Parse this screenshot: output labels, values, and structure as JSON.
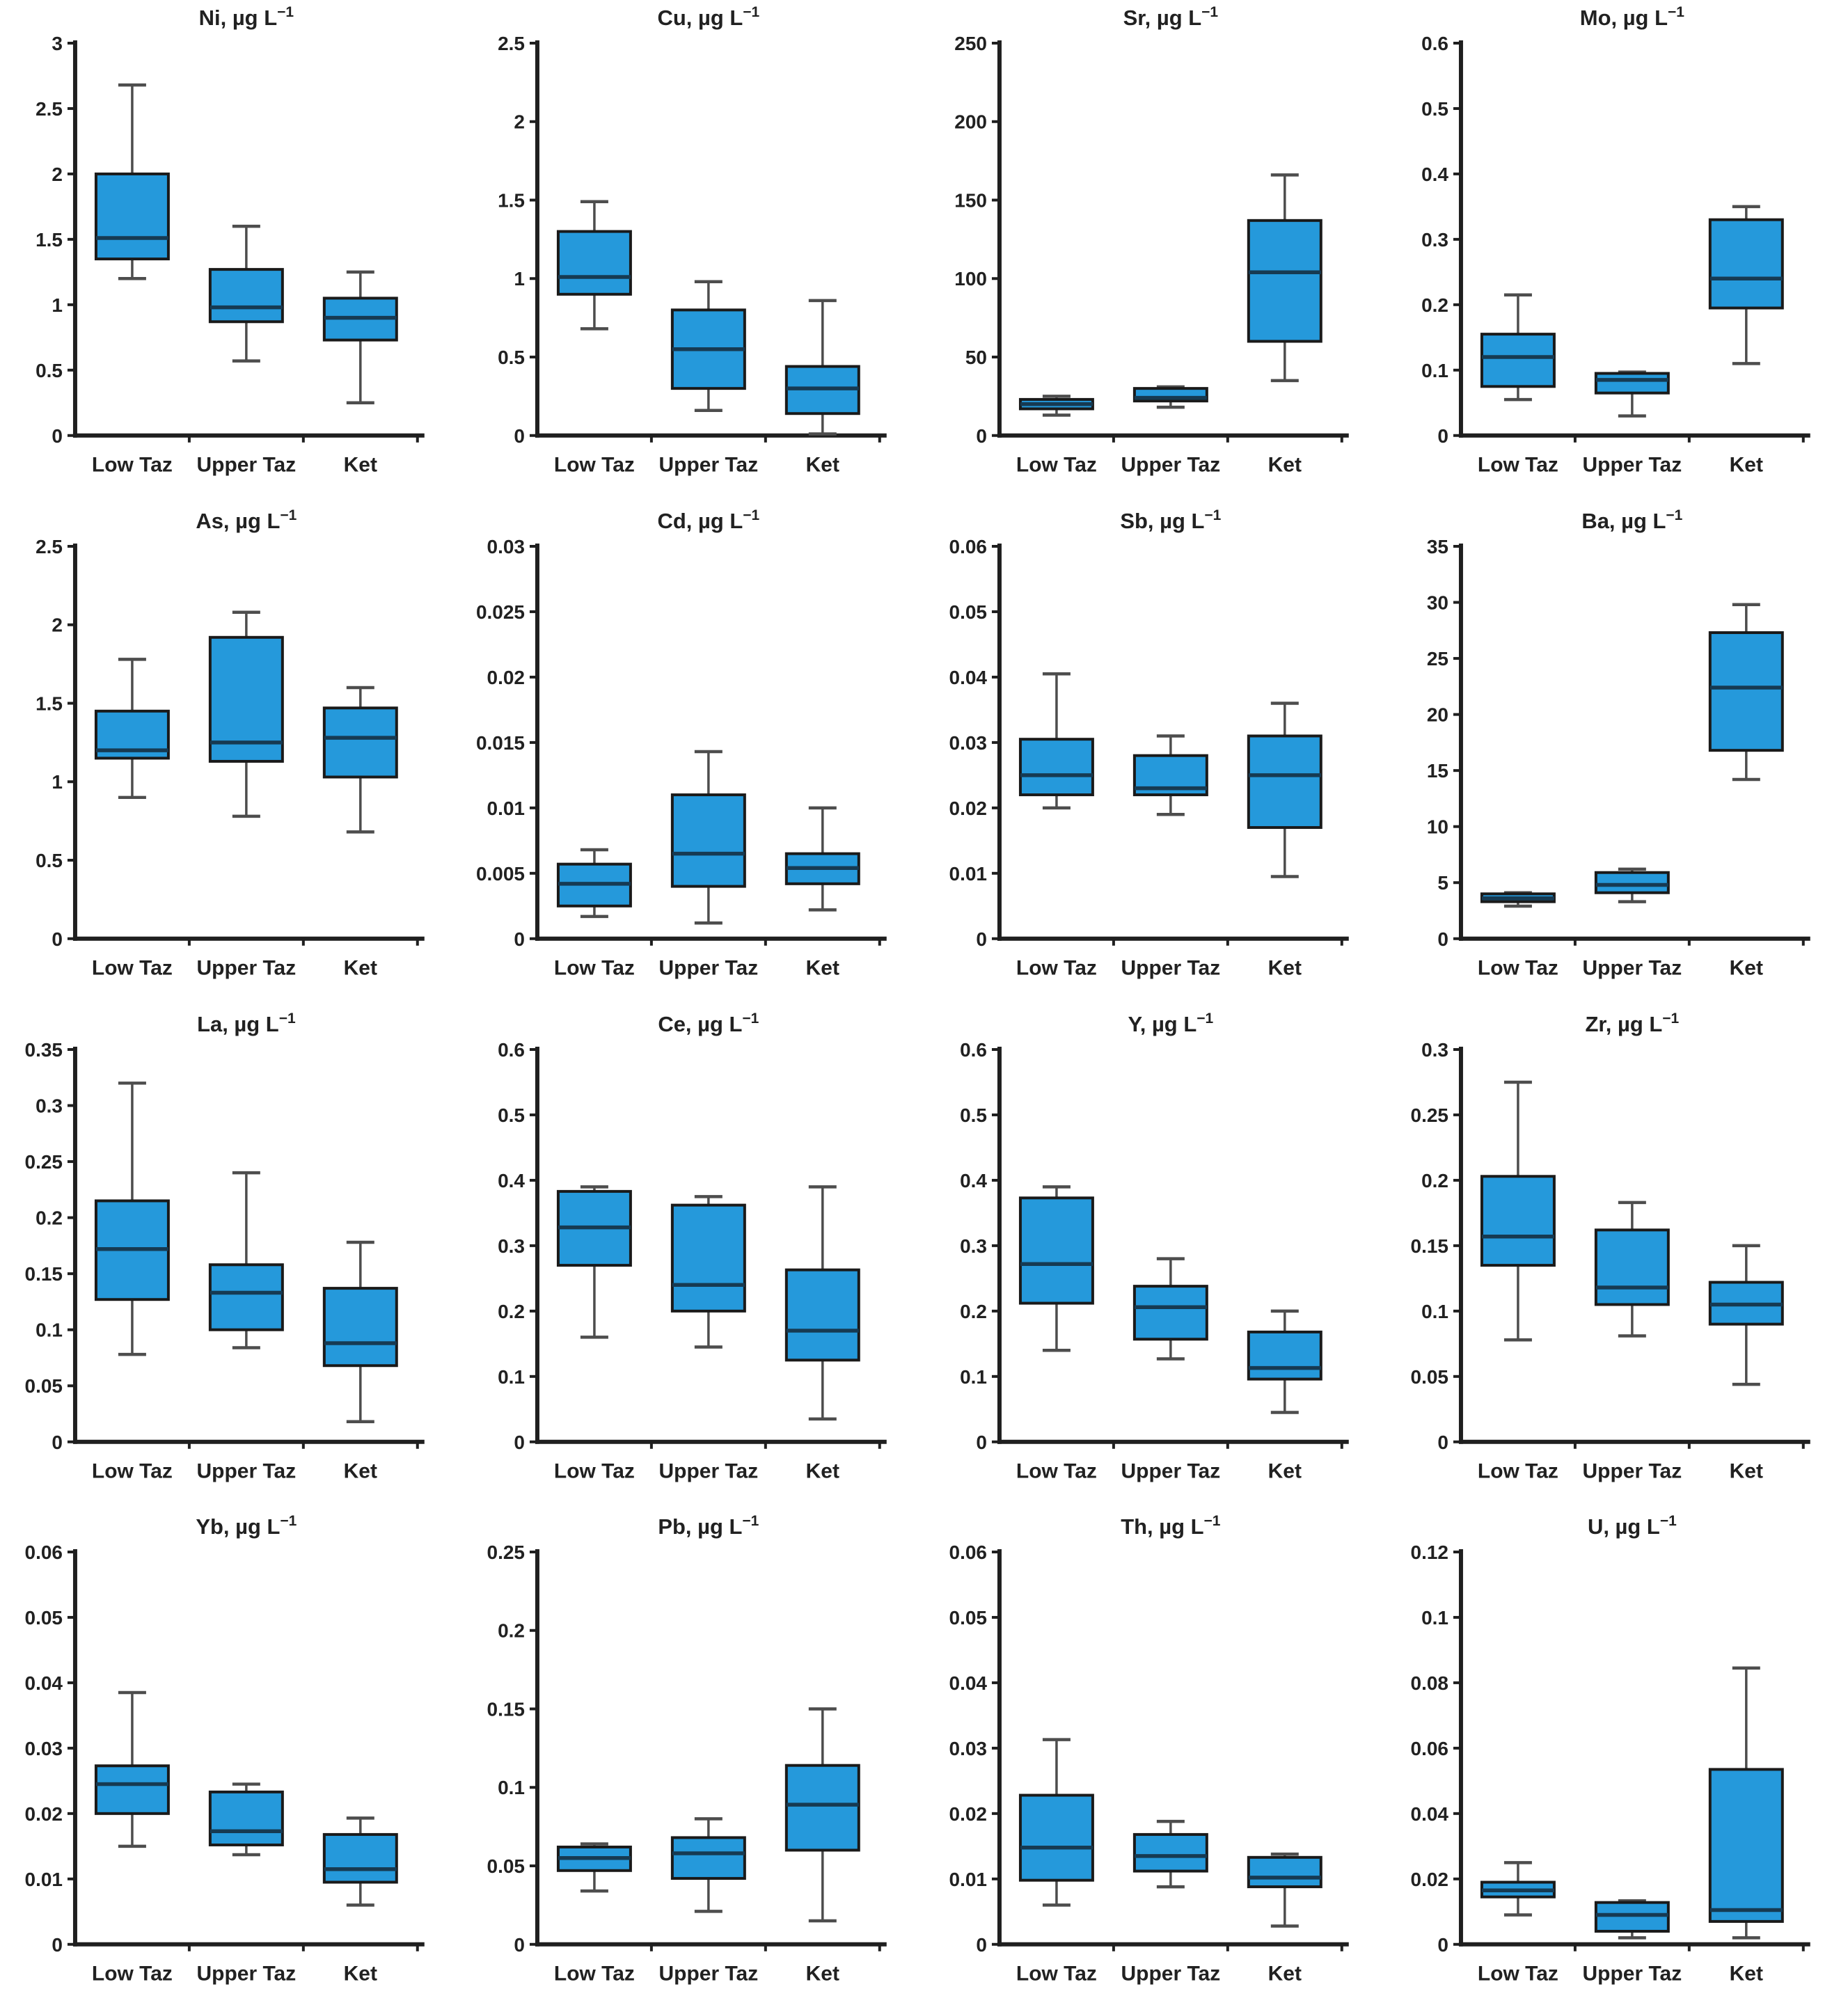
{
  "figure": {
    "description": "4x4 grid of box-and-whisker plots of trace element concentrations",
    "unit": "µg L",
    "unit_exponent": "−1",
    "categories": [
      "Low Taz",
      "Upper Taz",
      "Ket"
    ]
  },
  "style": {
    "background": "#ffffff",
    "box_fill": "#2599db",
    "box_border": "#1a1a1a",
    "median_color": "#163a52",
    "whisker_color": "#4d4d4d",
    "axis_color": "#1f1f1f",
    "text_color": "#212121"
  },
  "chart_data": [
    {
      "type": "box",
      "element": "Ni",
      "title": "Ni, µg L⁻¹",
      "categories": [
        "Low Taz",
        "Upper Taz",
        "Ket"
      ],
      "ylim": [
        0,
        3
      ],
      "ytick_step": 0.5,
      "series": [
        {
          "name": "Low Taz",
          "whisker_low": 1.2,
          "q1": 1.35,
          "median": 1.51,
          "q3": 2.0,
          "whisker_high": 2.68
        },
        {
          "name": "Upper Taz",
          "whisker_low": 0.57,
          "q1": 0.87,
          "median": 0.98,
          "q3": 1.27,
          "whisker_high": 1.6
        },
        {
          "name": "Ket",
          "whisker_low": 0.25,
          "q1": 0.73,
          "median": 0.9,
          "q3": 1.05,
          "whisker_high": 1.25
        }
      ]
    },
    {
      "type": "box",
      "element": "Cu",
      "title": "Cu, µg L⁻¹",
      "categories": [
        "Low Taz",
        "Upper Taz",
        "Ket"
      ],
      "ylim": [
        0,
        2.5
      ],
      "ytick_step": 0.5,
      "series": [
        {
          "name": "Low Taz",
          "whisker_low": 0.68,
          "q1": 0.9,
          "median": 1.01,
          "q3": 1.3,
          "whisker_high": 1.49
        },
        {
          "name": "Upper Taz",
          "whisker_low": 0.16,
          "q1": 0.3,
          "median": 0.55,
          "q3": 0.8,
          "whisker_high": 0.98
        },
        {
          "name": "Ket",
          "whisker_low": 0.01,
          "q1": 0.14,
          "median": 0.3,
          "q3": 0.44,
          "whisker_high": 0.86
        }
      ]
    },
    {
      "type": "box",
      "element": "Sr",
      "title": "Sr, µg L⁻¹",
      "categories": [
        "Low Taz",
        "Upper Taz",
        "Ket"
      ],
      "ylim": [
        0,
        250
      ],
      "ytick_step": 50,
      "series": [
        {
          "name": "Low Taz",
          "whisker_low": 13,
          "q1": 17,
          "median": 20,
          "q3": 23,
          "whisker_high": 25
        },
        {
          "name": "Upper Taz",
          "whisker_low": 18,
          "q1": 22,
          "median": 24,
          "q3": 30,
          "whisker_high": 31
        },
        {
          "name": "Ket",
          "whisker_low": 35,
          "q1": 60,
          "median": 104,
          "q3": 137,
          "whisker_high": 166
        }
      ]
    },
    {
      "type": "box",
      "element": "Mo",
      "title": "Mo, µg L⁻¹",
      "categories": [
        "Low Taz",
        "Upper Taz",
        "Ket"
      ],
      "ylim": [
        0,
        0.6
      ],
      "ytick_step": 0.1,
      "series": [
        {
          "name": "Low Taz",
          "whisker_low": 0.055,
          "q1": 0.075,
          "median": 0.12,
          "q3": 0.155,
          "whisker_high": 0.215
        },
        {
          "name": "Upper Taz",
          "whisker_low": 0.03,
          "q1": 0.065,
          "median": 0.085,
          "q3": 0.095,
          "whisker_high": 0.097
        },
        {
          "name": "Ket",
          "whisker_low": 0.11,
          "q1": 0.195,
          "median": 0.24,
          "q3": 0.33,
          "whisker_high": 0.35
        }
      ]
    },
    {
      "type": "box",
      "element": "As",
      "title": "As, µg L⁻¹",
      "categories": [
        "Low Taz",
        "Upper Taz",
        "Ket"
      ],
      "ylim": [
        0,
        2.5
      ],
      "ytick_step": 0.5,
      "series": [
        {
          "name": "Low Taz",
          "whisker_low": 0.9,
          "q1": 1.15,
          "median": 1.2,
          "q3": 1.45,
          "whisker_high": 1.78
        },
        {
          "name": "Upper Taz",
          "whisker_low": 0.78,
          "q1": 1.13,
          "median": 1.25,
          "q3": 1.92,
          "whisker_high": 2.08
        },
        {
          "name": "Ket",
          "whisker_low": 0.68,
          "q1": 1.03,
          "median": 1.28,
          "q3": 1.47,
          "whisker_high": 1.6
        }
      ]
    },
    {
      "type": "box",
      "element": "Cd",
      "title": "Cd, µg L⁻¹",
      "categories": [
        "Low Taz",
        "Upper Taz",
        "Ket"
      ],
      "ylim": [
        0,
        0.03
      ],
      "ytick_step": 0.005,
      "series": [
        {
          "name": "Low Taz",
          "whisker_low": 0.0017,
          "q1": 0.0025,
          "median": 0.0042,
          "q3": 0.0057,
          "whisker_high": 0.0068
        },
        {
          "name": "Upper Taz",
          "whisker_low": 0.0012,
          "q1": 0.004,
          "median": 0.0065,
          "q3": 0.011,
          "whisker_high": 0.0143
        },
        {
          "name": "Ket",
          "whisker_low": 0.0022,
          "q1": 0.0042,
          "median": 0.0054,
          "q3": 0.0065,
          "whisker_high": 0.01
        }
      ]
    },
    {
      "type": "box",
      "element": "Sb",
      "title": "Sb, µg L⁻¹",
      "categories": [
        "Low Taz",
        "Upper Taz",
        "Ket"
      ],
      "ylim": [
        0,
        0.06
      ],
      "ytick_step": 0.01,
      "series": [
        {
          "name": "Low Taz",
          "whisker_low": 0.02,
          "q1": 0.022,
          "median": 0.025,
          "q3": 0.0305,
          "whisker_high": 0.0405
        },
        {
          "name": "Upper Taz",
          "whisker_low": 0.019,
          "q1": 0.022,
          "median": 0.023,
          "q3": 0.028,
          "whisker_high": 0.031
        },
        {
          "name": "Ket",
          "whisker_low": 0.0095,
          "q1": 0.017,
          "median": 0.025,
          "q3": 0.031,
          "whisker_high": 0.036
        }
      ]
    },
    {
      "type": "box",
      "element": "Ba",
      "title": "Ba, µg L⁻¹",
      "categories": [
        "Low Taz",
        "Upper Taz",
        "Ket"
      ],
      "ylim": [
        0,
        35
      ],
      "ytick_step": 5,
      "series": [
        {
          "name": "Low Taz",
          "whisker_low": 2.9,
          "q1": 3.3,
          "median": 3.6,
          "q3": 4.0,
          "whisker_high": 4.1
        },
        {
          "name": "Upper Taz",
          "whisker_low": 3.3,
          "q1": 4.1,
          "median": 4.8,
          "q3": 5.9,
          "whisker_high": 6.2
        },
        {
          "name": "Ket",
          "whisker_low": 14.2,
          "q1": 16.8,
          "median": 22.4,
          "q3": 27.3,
          "whisker_high": 29.8
        }
      ]
    },
    {
      "type": "box",
      "element": "La",
      "title": "La, µg L⁻¹",
      "categories": [
        "Low Taz",
        "Upper Taz",
        "Ket"
      ],
      "ylim": [
        0,
        0.35
      ],
      "ytick_step": 0.05,
      "series": [
        {
          "name": "Low Taz",
          "whisker_low": 0.078,
          "q1": 0.127,
          "median": 0.172,
          "q3": 0.215,
          "whisker_high": 0.32
        },
        {
          "name": "Upper Taz",
          "whisker_low": 0.084,
          "q1": 0.1,
          "median": 0.133,
          "q3": 0.158,
          "whisker_high": 0.24
        },
        {
          "name": "Ket",
          "whisker_low": 0.018,
          "q1": 0.068,
          "median": 0.088,
          "q3": 0.137,
          "whisker_high": 0.178
        }
      ]
    },
    {
      "type": "box",
      "element": "Ce",
      "title": "Ce, µg L⁻¹",
      "categories": [
        "Low Taz",
        "Upper Taz",
        "Ket"
      ],
      "ylim": [
        0,
        0.6
      ],
      "ytick_step": 0.1,
      "series": [
        {
          "name": "Low Taz",
          "whisker_low": 0.16,
          "q1": 0.27,
          "median": 0.328,
          "q3": 0.383,
          "whisker_high": 0.39
        },
        {
          "name": "Upper Taz",
          "whisker_low": 0.145,
          "q1": 0.2,
          "median": 0.24,
          "q3": 0.362,
          "whisker_high": 0.375
        },
        {
          "name": "Ket",
          "whisker_low": 0.035,
          "q1": 0.125,
          "median": 0.17,
          "q3": 0.263,
          "whisker_high": 0.39
        }
      ]
    },
    {
      "type": "box",
      "element": "Y",
      "title": "Y, µg L⁻¹",
      "categories": [
        "Low Taz",
        "Upper Taz",
        "Ket"
      ],
      "ylim": [
        0,
        0.6
      ],
      "ytick_step": 0.1,
      "series": [
        {
          "name": "Low Taz",
          "whisker_low": 0.14,
          "q1": 0.212,
          "median": 0.272,
          "q3": 0.373,
          "whisker_high": 0.39
        },
        {
          "name": "Upper Taz",
          "whisker_low": 0.127,
          "q1": 0.157,
          "median": 0.206,
          "q3": 0.238,
          "whisker_high": 0.28
        },
        {
          "name": "Ket",
          "whisker_low": 0.045,
          "q1": 0.096,
          "median": 0.113,
          "q3": 0.168,
          "whisker_high": 0.2
        }
      ]
    },
    {
      "type": "box",
      "element": "Zr",
      "title": "Zr, µg L⁻¹",
      "categories": [
        "Low Taz",
        "Upper Taz",
        "Ket"
      ],
      "ylim": [
        0,
        0.3
      ],
      "ytick_step": 0.05,
      "series": [
        {
          "name": "Low Taz",
          "whisker_low": 0.078,
          "q1": 0.135,
          "median": 0.157,
          "q3": 0.203,
          "whisker_high": 0.275
        },
        {
          "name": "Upper Taz",
          "whisker_low": 0.081,
          "q1": 0.105,
          "median": 0.118,
          "q3": 0.162,
          "whisker_high": 0.183
        },
        {
          "name": "Ket",
          "whisker_low": 0.044,
          "q1": 0.09,
          "median": 0.105,
          "q3": 0.122,
          "whisker_high": 0.15
        }
      ]
    },
    {
      "type": "box",
      "element": "Yb",
      "title": "Yb, µg L⁻¹",
      "categories": [
        "Low Taz",
        "Upper Taz",
        "Ket"
      ],
      "ylim": [
        0,
        0.06
      ],
      "ytick_step": 0.01,
      "series": [
        {
          "name": "Low Taz",
          "whisker_low": 0.015,
          "q1": 0.02,
          "median": 0.0245,
          "q3": 0.0273,
          "whisker_high": 0.0385
        },
        {
          "name": "Upper Taz",
          "whisker_low": 0.0137,
          "q1": 0.0152,
          "median": 0.0173,
          "q3": 0.0233,
          "whisker_high": 0.0245
        },
        {
          "name": "Ket",
          "whisker_low": 0.006,
          "q1": 0.0095,
          "median": 0.0115,
          "q3": 0.0168,
          "whisker_high": 0.0193
        }
      ]
    },
    {
      "type": "box",
      "element": "Pb",
      "title": "Pb, µg L⁻¹",
      "categories": [
        "Low Taz",
        "Upper Taz",
        "Ket"
      ],
      "ylim": [
        0,
        0.25
      ],
      "ytick_step": 0.05,
      "series": [
        {
          "name": "Low Taz",
          "whisker_low": 0.034,
          "q1": 0.047,
          "median": 0.055,
          "q3": 0.062,
          "whisker_high": 0.064
        },
        {
          "name": "Upper Taz",
          "whisker_low": 0.021,
          "q1": 0.042,
          "median": 0.058,
          "q3": 0.068,
          "whisker_high": 0.08
        },
        {
          "name": "Ket",
          "whisker_low": 0.015,
          "q1": 0.06,
          "median": 0.089,
          "q3": 0.114,
          "whisker_high": 0.15
        }
      ]
    },
    {
      "type": "box",
      "element": "Th",
      "title": "Th, µg L⁻¹",
      "categories": [
        "Low Taz",
        "Upper Taz",
        "Ket"
      ],
      "ylim": [
        0,
        0.06
      ],
      "ytick_step": 0.01,
      "series": [
        {
          "name": "Low Taz",
          "whisker_low": 0.006,
          "q1": 0.0098,
          "median": 0.0148,
          "q3": 0.0228,
          "whisker_high": 0.0313
        },
        {
          "name": "Upper Taz",
          "whisker_low": 0.0088,
          "q1": 0.0112,
          "median": 0.0135,
          "q3": 0.0168,
          "whisker_high": 0.0188
        },
        {
          "name": "Ket",
          "whisker_low": 0.0028,
          "q1": 0.0088,
          "median": 0.0102,
          "q3": 0.0133,
          "whisker_high": 0.0138
        }
      ]
    },
    {
      "type": "box",
      "element": "U",
      "title": "U, µg L⁻¹",
      "categories": [
        "Low Taz",
        "Upper Taz",
        "Ket"
      ],
      "ylim": [
        0,
        0.12
      ],
      "ytick_step": 0.02,
      "series": [
        {
          "name": "Low Taz",
          "whisker_low": 0.009,
          "q1": 0.0145,
          "median": 0.0165,
          "q3": 0.019,
          "whisker_high": 0.025
        },
        {
          "name": "Upper Taz",
          "whisker_low": 0.002,
          "q1": 0.004,
          "median": 0.009,
          "q3": 0.0128,
          "whisker_high": 0.0133
        },
        {
          "name": "Ket",
          "whisker_low": 0.002,
          "q1": 0.007,
          "median": 0.0105,
          "q3": 0.0535,
          "whisker_high": 0.0845
        }
      ]
    }
  ]
}
